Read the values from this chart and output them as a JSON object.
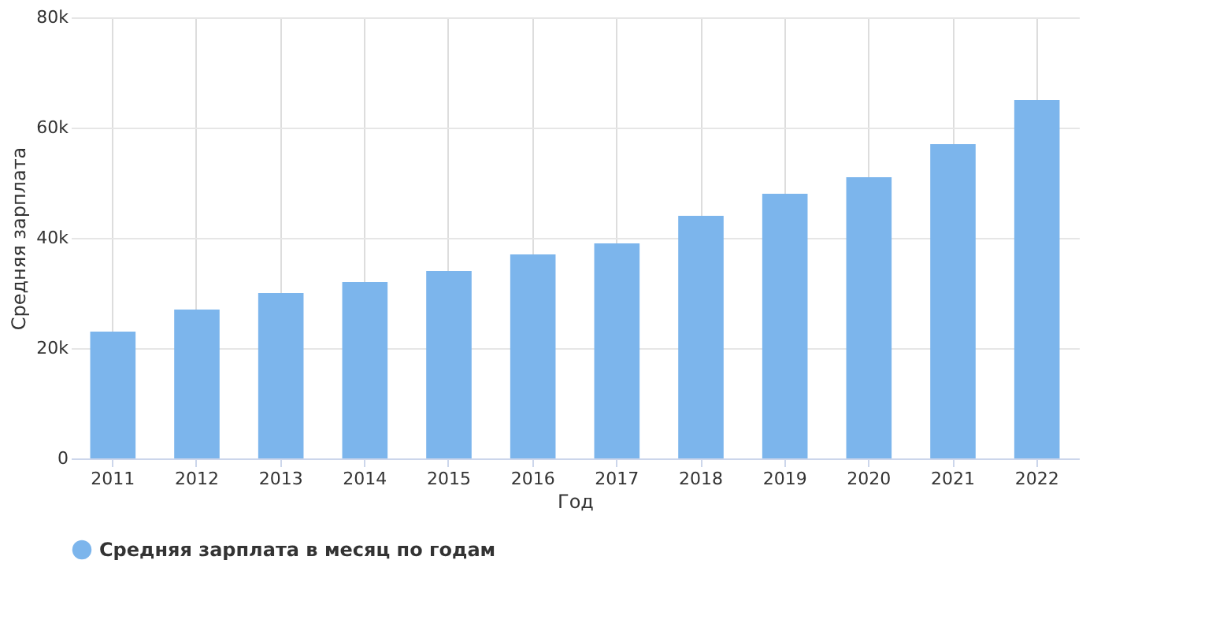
{
  "chart_data": {
    "type": "bar",
    "xlabel": "Год",
    "ylabel": "Средняя зарплата",
    "categories": [
      "2011",
      "2012",
      "2013",
      "2014",
      "2015",
      "2016",
      "2017",
      "2018",
      "2019",
      "2020",
      "2021",
      "2022"
    ],
    "series": [
      {
        "name": "Средняя зарплата в месяц по годам",
        "color": "#7cb5ec",
        "values": [
          23000,
          27000,
          30000,
          32000,
          34000,
          37000,
          39000,
          44000,
          48000,
          51000,
          57000,
          65000
        ]
      }
    ],
    "ylim": [
      0,
      80000
    ],
    "yticks": [
      0,
      {
        "value": 20000,
        "label": "20k"
      },
      {
        "value": 40000,
        "label": "40k"
      },
      {
        "value": 60000,
        "label": "60k"
      },
      {
        "value": 80000,
        "label": "80k"
      }
    ],
    "grid": true,
    "legend": "bottom"
  }
}
